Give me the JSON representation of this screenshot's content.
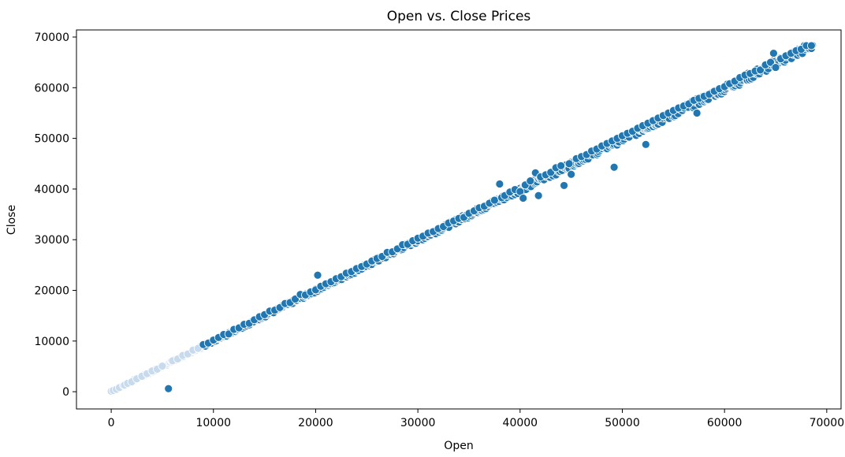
{
  "chart_data": {
    "type": "scatter",
    "title": "Open vs. Close Prices",
    "xlabel": "Open",
    "ylabel": "Close",
    "xlim": [
      -3400,
      71400
    ],
    "ylim": [
      -3400,
      71400
    ],
    "xticks": [
      0,
      10000,
      20000,
      30000,
      40000,
      50000,
      60000,
      70000
    ],
    "yticks": [
      0,
      10000,
      20000,
      30000,
      40000,
      50000,
      60000,
      70000
    ],
    "grid": false,
    "point_color": "#1f77b4",
    "point_edge_color": "#ffffff",
    "series": [
      {
        "trend": [
          [
            0,
            0
          ],
          [
            68600,
            68400
          ]
        ],
        "points_sample": [
          [
            0,
            100
          ],
          [
            200,
            250
          ],
          [
            500,
            480
          ],
          [
            800,
            820
          ],
          [
            1200,
            1250
          ],
          [
            1300,
            1300
          ],
          [
            1600,
            1650
          ],
          [
            2000,
            1950
          ],
          [
            2500,
            2550
          ],
          [
            3000,
            3050
          ],
          [
            3500,
            3550
          ],
          [
            4000,
            4100
          ],
          [
            4500,
            4450
          ],
          [
            5000,
            5050
          ],
          [
            5600,
            600
          ],
          [
            6000,
            6100
          ],
          [
            6500,
            6450
          ],
          [
            7000,
            7150
          ],
          [
            7500,
            7450
          ],
          [
            8000,
            8200
          ],
          [
            8500,
            8550
          ],
          [
            9000,
            9300
          ],
          [
            9500,
            9600
          ],
          [
            10000,
            10200
          ],
          [
            10500,
            10700
          ],
          [
            11000,
            11300
          ],
          [
            11500,
            11400
          ],
          [
            12000,
            12300
          ],
          [
            12500,
            12600
          ],
          [
            13000,
            13300
          ],
          [
            13500,
            13500
          ],
          [
            14000,
            14200
          ],
          [
            14500,
            14800
          ],
          [
            15000,
            15200
          ],
          [
            15500,
            15900
          ],
          [
            16000,
            16100
          ],
          [
            16500,
            16600
          ],
          [
            17000,
            17400
          ],
          [
            17500,
            17600
          ],
          [
            18000,
            18300
          ],
          [
            18500,
            19200
          ],
          [
            19000,
            19100
          ],
          [
            19500,
            19700
          ],
          [
            20000,
            20100
          ],
          [
            20200,
            23000
          ],
          [
            20500,
            20800
          ],
          [
            21000,
            21300
          ],
          [
            21500,
            21700
          ],
          [
            22000,
            22300
          ],
          [
            22500,
            22700
          ],
          [
            23000,
            23400
          ],
          [
            23500,
            23700
          ],
          [
            24000,
            24300
          ],
          [
            24500,
            24700
          ],
          [
            25000,
            25200
          ],
          [
            25500,
            25800
          ],
          [
            26000,
            26300
          ],
          [
            26500,
            26700
          ],
          [
            27000,
            27500
          ],
          [
            27500,
            27600
          ],
          [
            28000,
            28200
          ],
          [
            28500,
            29000
          ],
          [
            29000,
            29100
          ],
          [
            29500,
            29800
          ],
          [
            30000,
            30300
          ],
          [
            30500,
            30700
          ],
          [
            31000,
            31300
          ],
          [
            31500,
            31600
          ],
          [
            32000,
            32200
          ],
          [
            32500,
            32600
          ],
          [
            33000,
            33300
          ],
          [
            33500,
            33700
          ],
          [
            34000,
            34200
          ],
          [
            34500,
            34400
          ],
          [
            35000,
            35200
          ],
          [
            35500,
            35700
          ],
          [
            36000,
            36300
          ],
          [
            36500,
            36600
          ],
          [
            37000,
            37200
          ],
          [
            37500,
            37800
          ],
          [
            38000,
            41000
          ],
          [
            38200,
            38300
          ],
          [
            38500,
            38700
          ],
          [
            39000,
            39400
          ],
          [
            39500,
            39900
          ],
          [
            40000,
            39500
          ],
          [
            40300,
            38200
          ],
          [
            40500,
            40800
          ],
          [
            41000,
            41600
          ],
          [
            41500,
            43200
          ],
          [
            41800,
            38700
          ],
          [
            42000,
            42400
          ],
          [
            42500,
            42800
          ],
          [
            43000,
            43300
          ],
          [
            43500,
            44200
          ],
          [
            44000,
            44600
          ],
          [
            44300,
            40700
          ],
          [
            44800,
            45000
          ],
          [
            45000,
            42900
          ],
          [
            45500,
            46000
          ],
          [
            46000,
            46400
          ],
          [
            46500,
            46800
          ],
          [
            47000,
            47500
          ],
          [
            47500,
            47900
          ],
          [
            48000,
            48500
          ],
          [
            48500,
            49000
          ],
          [
            49000,
            49500
          ],
          [
            49200,
            44300
          ],
          [
            49500,
            50000
          ],
          [
            50000,
            50500
          ],
          [
            50500,
            51000
          ],
          [
            51000,
            51400
          ],
          [
            51500,
            52000
          ],
          [
            52000,
            52500
          ],
          [
            52300,
            48800
          ],
          [
            52500,
            53000
          ],
          [
            53000,
            53500
          ],
          [
            53500,
            54000
          ],
          [
            54000,
            54500
          ],
          [
            54500,
            55000
          ],
          [
            55000,
            55500
          ],
          [
            55500,
            56000
          ],
          [
            56000,
            56400
          ],
          [
            56500,
            56800
          ],
          [
            57000,
            57500
          ],
          [
            57300,
            55000
          ],
          [
            57500,
            57900
          ],
          [
            58000,
            58300
          ],
          [
            58500,
            58700
          ],
          [
            59000,
            59300
          ],
          [
            59500,
            59800
          ],
          [
            60000,
            60200
          ],
          [
            60500,
            60800
          ],
          [
            61000,
            61300
          ],
          [
            61500,
            62000
          ],
          [
            62000,
            62500
          ],
          [
            62500,
            62800
          ],
          [
            63000,
            63300
          ],
          [
            63500,
            63500
          ],
          [
            64000,
            64500
          ],
          [
            64500,
            65000
          ],
          [
            64800,
            66800
          ],
          [
            65000,
            64000
          ],
          [
            65500,
            65700
          ],
          [
            66000,
            66300
          ],
          [
            66500,
            66800
          ],
          [
            67000,
            67300
          ],
          [
            67500,
            67600
          ],
          [
            68000,
            68300
          ],
          [
            68500,
            68300
          ]
        ]
      }
    ]
  }
}
